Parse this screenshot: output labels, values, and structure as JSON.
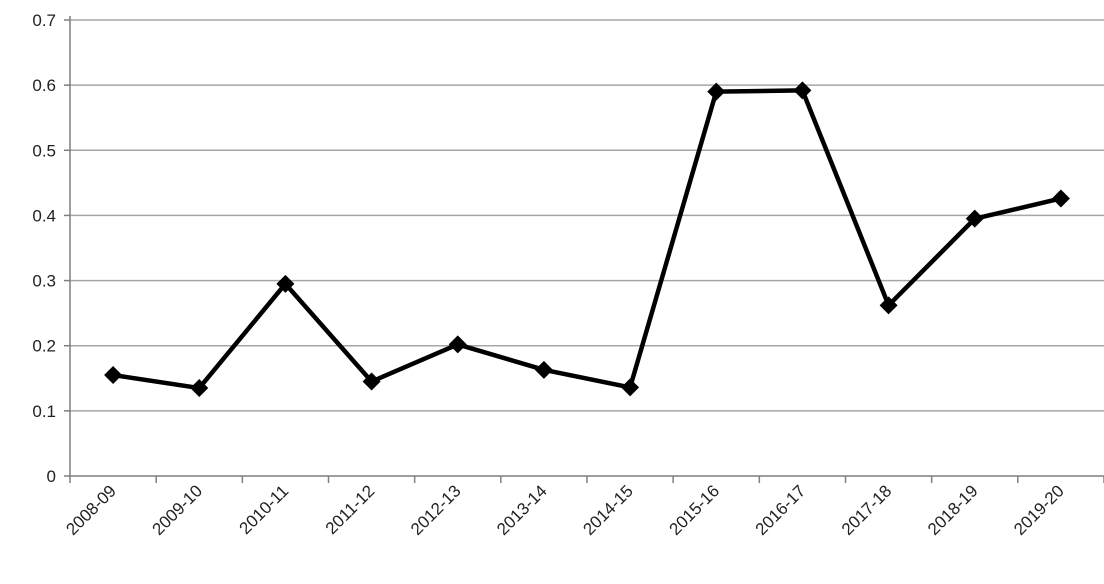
{
  "chart_data": {
    "type": "line",
    "categories": [
      "2008-09",
      "2009-10",
      "2010-11",
      "2011-12",
      "2012-13",
      "2013-14",
      "2014-15",
      "2015-16",
      "2016-17",
      "2017-18",
      "2018-19",
      "2019-20"
    ],
    "series": [
      {
        "values": [
          0.155,
          0.135,
          0.295,
          0.145,
          0.202,
          0.163,
          0.136,
          0.59,
          0.592,
          0.262,
          0.395,
          0.426
        ]
      }
    ],
    "ylim": [
      0,
      0.7
    ],
    "yticks": [
      "0",
      "0.1",
      "0.2",
      "0.3",
      "0.4",
      "0.5",
      "0.6",
      "0.7"
    ],
    "grid": true,
    "colors": {
      "line": "#000000",
      "grid": "#a6a6a6",
      "axis": "#7f7f7f"
    },
    "marker": "diamond"
  }
}
